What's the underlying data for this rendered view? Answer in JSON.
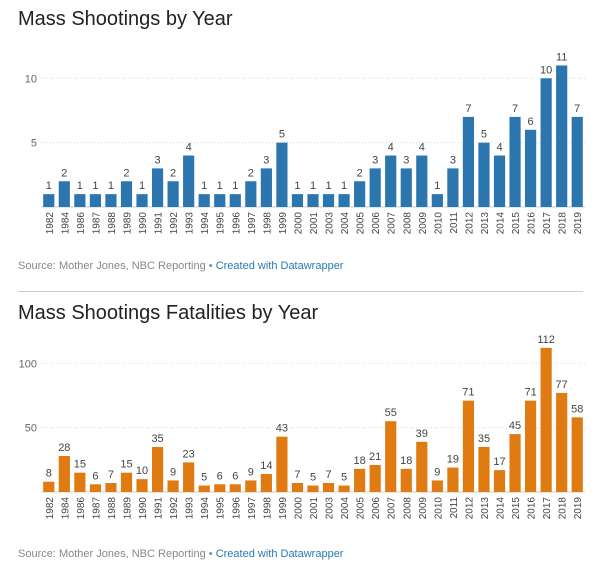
{
  "page_background": "#ffffff",
  "chart_data": [
    {
      "type": "bar",
      "title": "Mass Shootings by Year",
      "source_text": "Source: Mother Jones, NBC Reporting",
      "separator": "•",
      "credit_text": "Created with Datawrapper",
      "color": "#2c76b0",
      "ylim": [
        0,
        11.5
      ],
      "yticks": [
        5,
        10
      ],
      "grid": true,
      "categories": [
        "1982",
        "1984",
        "1986",
        "1987",
        "1988",
        "1989",
        "1990",
        "1991",
        "1992",
        "1993",
        "1994",
        "1995",
        "1996",
        "1997",
        "1998",
        "1999",
        "2000",
        "2001",
        "2003",
        "2004",
        "2005",
        "2006",
        "2007",
        "2008",
        "2009",
        "2010",
        "2011",
        "2012",
        "2013",
        "2014",
        "2015",
        "2016",
        "2017",
        "2018",
        "2019"
      ],
      "values": [
        1,
        2,
        1,
        1,
        1,
        2,
        1,
        3,
        2,
        4,
        1,
        1,
        1,
        2,
        3,
        5,
        1,
        1,
        1,
        1,
        2,
        3,
        4,
        3,
        4,
        1,
        3,
        7,
        5,
        4,
        7,
        6,
        10,
        11,
        7
      ],
      "xlabel": "",
      "ylabel": ""
    },
    {
      "type": "bar",
      "title": "Mass Shootings Fatalities by Year",
      "source_text": "Source: Mother Jones, NBC Reporting",
      "separator": "•",
      "credit_text": "Created with Datawrapper",
      "color": "#e07b14",
      "ylim": [
        0,
        115
      ],
      "yticks": [
        50,
        100
      ],
      "grid": true,
      "categories": [
        "1982",
        "1984",
        "1986",
        "1987",
        "1988",
        "1989",
        "1990",
        "1991",
        "1992",
        "1993",
        "1994",
        "1995",
        "1996",
        "1997",
        "1998",
        "1999",
        "2000",
        "2001",
        "2003",
        "2004",
        "2005",
        "2006",
        "2007",
        "2008",
        "2009",
        "2010",
        "2011",
        "2012",
        "2013",
        "2014",
        "2015",
        "2016",
        "2017",
        "2018",
        "2019"
      ],
      "values": [
        8,
        28,
        15,
        6,
        7,
        15,
        10,
        35,
        9,
        23,
        5,
        6,
        6,
        9,
        14,
        43,
        7,
        5,
        7,
        5,
        18,
        21,
        55,
        18,
        39,
        9,
        19,
        71,
        35,
        17,
        45,
        71,
        112,
        77,
        58
      ],
      "xlabel": "",
      "ylabel": ""
    }
  ]
}
